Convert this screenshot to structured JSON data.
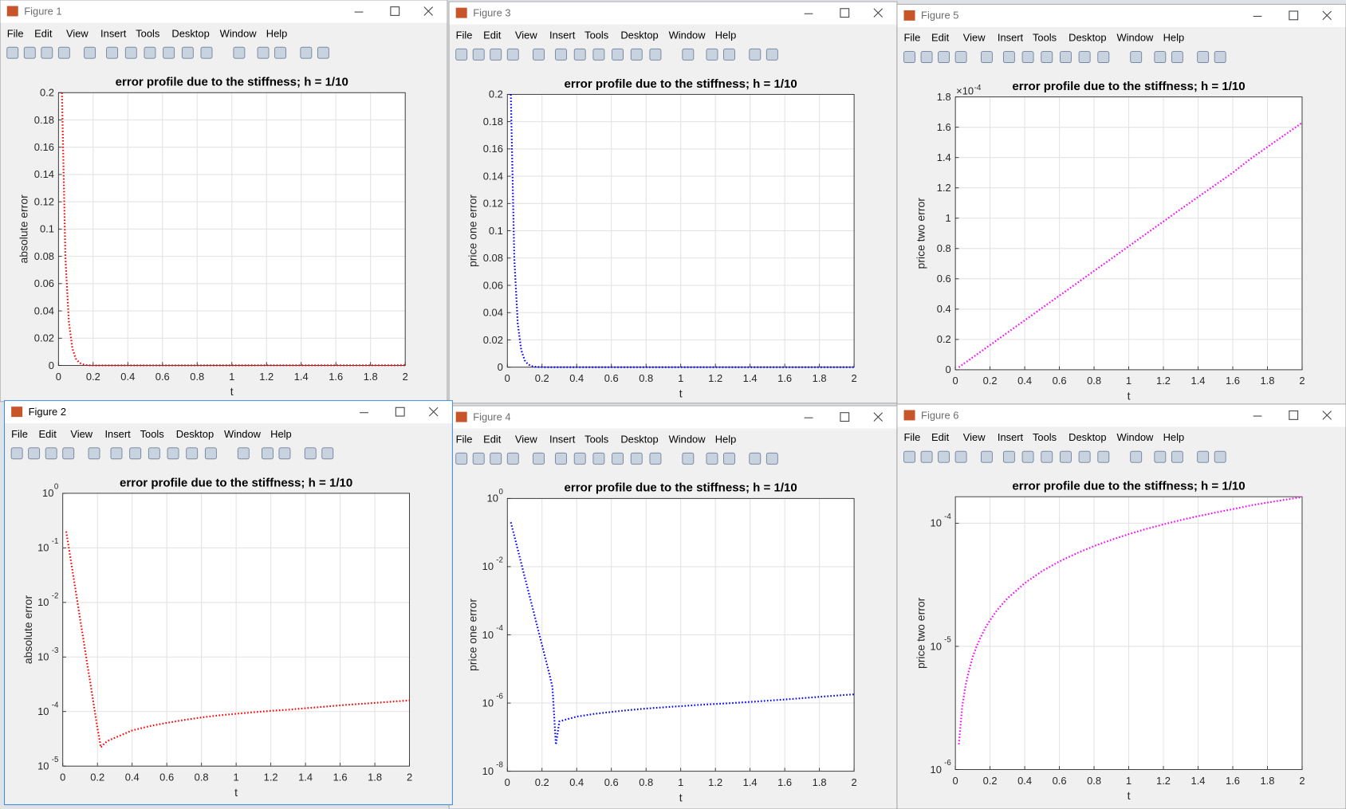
{
  "menu": [
    "File",
    "Edit",
    "View",
    "Insert",
    "Tools",
    "Desktop",
    "Window",
    "Help"
  ],
  "windows": [
    {
      "title": "Figure 1"
    },
    {
      "title": "Figure 2"
    },
    {
      "title": "Figure 3"
    },
    {
      "title": "Figure 4"
    },
    {
      "title": "Figure 5"
    },
    {
      "title": "Figure 6"
    }
  ],
  "chart_data": [
    {
      "type": "line",
      "title": "error profile due to the stiffness; h = 1/10",
      "xlabel": "t",
      "ylabel": "absolute error",
      "color": "#ff0000",
      "grid": true,
      "yscale": "linear",
      "x": [
        0.02,
        0.04,
        0.06,
        0.08,
        0.1,
        0.12,
        0.14,
        0.16,
        0.18,
        0.2,
        0.22,
        0.24,
        0.26,
        0.28,
        0.3,
        0.4,
        0.5,
        0.6,
        0.7,
        0.8,
        0.9,
        1,
        1.1,
        1.2,
        1.3,
        1.4,
        1.5,
        1.6,
        1.7,
        1.8,
        1.9,
        2
      ],
      "values": [
        0.2,
        0.079,
        0.032,
        0.0126,
        0.005,
        0.002,
        0.00079,
        0.00032,
        0.000126,
        5e-05,
        2.2e-05,
        2.6e-05,
        2.9e-05,
        3.1e-05,
        3.3e-05,
        4.5e-05,
        5.4e-05,
        6.2e-05,
        7e-05,
        7.8e-05,
        8.5e-05,
        9.1e-05,
        9.7e-05,
        0.000103,
        0.000108,
        0.000115,
        0.000122,
        0.00013,
        0.000137,
        0.000144,
        0.000152,
        0.00016
      ],
      "xlim": [
        0,
        2
      ],
      "xticks": [
        0,
        0.2,
        0.4,
        0.6,
        0.8,
        1,
        1.2,
        1.4,
        1.6,
        1.8,
        2
      ],
      "ylim": [
        0,
        0.2
      ],
      "yticks": [
        0,
        0.02,
        0.04,
        0.06,
        0.08,
        0.1,
        0.12,
        0.14,
        0.16,
        0.18,
        0.2
      ]
    },
    {
      "type": "line",
      "title": "error profile due to the stiffness; h = 1/10",
      "xlabel": "t",
      "ylabel": "absolute error",
      "color": "#ff0000",
      "grid": true,
      "yscale": "log",
      "x": [
        0.02,
        0.04,
        0.06,
        0.08,
        0.1,
        0.12,
        0.14,
        0.16,
        0.18,
        0.2,
        0.22,
        0.24,
        0.26,
        0.28,
        0.3,
        0.4,
        0.5,
        0.6,
        0.7,
        0.8,
        0.9,
        1,
        1.1,
        1.2,
        1.3,
        1.4,
        1.5,
        1.6,
        1.7,
        1.8,
        1.9,
        2
      ],
      "values": [
        0.2,
        0.079,
        0.032,
        0.0126,
        0.005,
        0.002,
        0.00079,
        0.00032,
        0.000126,
        5e-05,
        2.2e-05,
        2.6e-05,
        2.9e-05,
        3.1e-05,
        3.3e-05,
        4.5e-05,
        5.4e-05,
        6.2e-05,
        7e-05,
        7.8e-05,
        8.5e-05,
        9.1e-05,
        9.7e-05,
        0.000103,
        0.000108,
        0.000115,
        0.000122,
        0.00013,
        0.000137,
        0.000144,
        0.000152,
        0.00016
      ],
      "xlim": [
        0,
        2
      ],
      "xticks": [
        0,
        0.2,
        0.4,
        0.6,
        0.8,
        1,
        1.2,
        1.4,
        1.6,
        1.8,
        2
      ],
      "ylim": [
        1e-05,
        1
      ],
      "yticks": [
        {
          "value": 1e-05,
          "label": "10",
          "exponent": "-5"
        },
        {
          "value": 0.0001,
          "label": "10",
          "exponent": "-4"
        },
        {
          "value": 0.001,
          "label": "10",
          "exponent": "-3"
        },
        {
          "value": 0.01,
          "label": "10",
          "exponent": "-2"
        },
        {
          "value": 0.1,
          "label": "10",
          "exponent": "-1"
        },
        {
          "value": 1,
          "label": "10",
          "exponent": "0"
        }
      ]
    },
    {
      "type": "line",
      "title": "error profile due to the stiffness; h = 1/10",
      "xlabel": "t",
      "ylabel": "price one error",
      "color": "#0000ff",
      "grid": true,
      "yscale": "linear",
      "x": [
        0.02,
        0.04,
        0.06,
        0.08,
        0.1,
        0.12,
        0.14,
        0.16,
        0.18,
        0.2,
        0.22,
        0.24,
        0.26,
        0.28,
        0.3,
        0.4,
        0.5,
        0.6,
        0.7,
        0.8,
        0.9,
        1,
        1.1,
        1.2,
        1.3,
        1.4,
        1.5,
        1.6,
        1.7,
        1.8,
        1.9,
        2
      ],
      "values": [
        0.2,
        0.08,
        0.032,
        0.0126,
        0.005,
        0.002,
        0.0008,
        0.00032,
        0.000126,
        5e-05,
        2e-05,
        7.9e-06,
        3e-06,
        6e-08,
        2.9e-07,
        4e-07,
        4.8e-07,
        5.5e-07,
        6.2e-07,
        6.9e-07,
        7.5e-07,
        8.1e-07,
        8.8e-07,
        9.4e-07,
        1e-06,
        1.08e-06,
        1.17e-06,
        1.27e-06,
        1.39e-06,
        1.52e-06,
        1.66e-06,
        1.8e-06
      ],
      "xlim": [
        0,
        2
      ],
      "xticks": [
        0,
        0.2,
        0.4,
        0.6,
        0.8,
        1,
        1.2,
        1.4,
        1.6,
        1.8,
        2
      ],
      "ylim": [
        0,
        0.2
      ],
      "yticks": [
        0,
        0.02,
        0.04,
        0.06,
        0.08,
        0.1,
        0.12,
        0.14,
        0.16,
        0.18,
        0.2
      ]
    },
    {
      "type": "line",
      "title": "error profile due to the stiffness; h = 1/10",
      "xlabel": "t",
      "ylabel": "price one error",
      "color": "#0000ff",
      "grid": true,
      "yscale": "log",
      "x": [
        0.02,
        0.04,
        0.06,
        0.08,
        0.1,
        0.12,
        0.14,
        0.16,
        0.18,
        0.2,
        0.22,
        0.24,
        0.26,
        0.28,
        0.3,
        0.4,
        0.5,
        0.6,
        0.7,
        0.8,
        0.9,
        1,
        1.1,
        1.2,
        1.3,
        1.4,
        1.5,
        1.6,
        1.7,
        1.8,
        1.9,
        2
      ],
      "values": [
        0.2,
        0.08,
        0.032,
        0.0126,
        0.005,
        0.002,
        0.0008,
        0.00032,
        0.000126,
        5e-05,
        2e-05,
        7.9e-06,
        3e-06,
        6e-08,
        2.9e-07,
        4e-07,
        4.8e-07,
        5.5e-07,
        6.2e-07,
        6.9e-07,
        7.5e-07,
        8.1e-07,
        8.8e-07,
        9.4e-07,
        1e-06,
        1.08e-06,
        1.17e-06,
        1.27e-06,
        1.39e-06,
        1.52e-06,
        1.66e-06,
        1.8e-06
      ],
      "xlim": [
        0,
        2
      ],
      "xticks": [
        0,
        0.2,
        0.4,
        0.6,
        0.8,
        1,
        1.2,
        1.4,
        1.6,
        1.8,
        2
      ],
      "ylim": [
        1e-08,
        1
      ],
      "yticks": [
        {
          "value": 1e-08,
          "label": "10",
          "exponent": "-8"
        },
        {
          "value": 1e-06,
          "label": "10",
          "exponent": "-6"
        },
        {
          "value": 0.0001,
          "label": "10",
          "exponent": "-4"
        },
        {
          "value": 0.01,
          "label": "10",
          "exponent": "-2"
        },
        {
          "value": 1,
          "label": "10",
          "exponent": "0"
        }
      ]
    },
    {
      "type": "line",
      "title": "error profile due to the stiffness; h = 1/10",
      "xlabel": "t",
      "ylabel": "price two error",
      "color": "#ff00ff",
      "grid": true,
      "yscale": "linear",
      "x": [
        0.02,
        0.04,
        0.06,
        0.08,
        0.1,
        0.12,
        0.14,
        0.16,
        0.18,
        0.2,
        0.22,
        0.24,
        0.26,
        0.28,
        0.3,
        0.4,
        0.5,
        0.6,
        0.7,
        0.8,
        0.9,
        1,
        1.1,
        1.2,
        1.3,
        1.4,
        1.5,
        1.6,
        1.7,
        1.8,
        1.9,
        2
      ],
      "values": [
        1.6e-06,
        3.3e-06,
        4.9e-06,
        6.5e-06,
        8.2e-06,
        9.8e-06,
        1.14e-05,
        1.3e-05,
        1.47e-05,
        1.63e-05,
        1.79e-05,
        1.96e-05,
        2.12e-05,
        2.28e-05,
        2.45e-05,
        3.26e-05,
        4.08e-05,
        4.89e-05,
        5.7e-05,
        6.52e-05,
        7.33e-05,
        8.15e-05,
        8.97e-05,
        9.78e-05,
        0.000106,
        0.000114,
        0.000122,
        0.00013,
        0.000139,
        0.000147,
        0.000155,
        0.000163
      ],
      "xlim": [
        0,
        2
      ],
      "xticks": [
        0,
        0.2,
        0.4,
        0.6,
        0.8,
        1,
        1.2,
        1.4,
        1.6,
        1.8,
        2
      ],
      "ylim": [
        0,
        0.00018
      ],
      "y_multiplier": {
        "label": "×10",
        "exponent": "-4"
      },
      "yticks": [
        {
          "value": 0,
          "label": "0"
        },
        {
          "value": 2e-05,
          "label": "0.2"
        },
        {
          "value": 4e-05,
          "label": "0.4"
        },
        {
          "value": 6e-05,
          "label": "0.6"
        },
        {
          "value": 8e-05,
          "label": "0.8"
        },
        {
          "value": 0.0001,
          "label": "1"
        },
        {
          "value": 0.00012,
          "label": "1.2"
        },
        {
          "value": 0.00014,
          "label": "1.4"
        },
        {
          "value": 0.00016,
          "label": "1.6"
        },
        {
          "value": 0.00018,
          "label": "1.8"
        }
      ]
    },
    {
      "type": "line",
      "title": "error profile due to the stiffness; h = 1/10",
      "xlabel": "t",
      "ylabel": "price two error",
      "color": "#ff00ff",
      "grid": true,
      "yscale": "log",
      "x": [
        0.02,
        0.04,
        0.06,
        0.08,
        0.1,
        0.12,
        0.14,
        0.16,
        0.18,
        0.2,
        0.22,
        0.24,
        0.26,
        0.28,
        0.3,
        0.4,
        0.5,
        0.6,
        0.7,
        0.8,
        0.9,
        1,
        1.1,
        1.2,
        1.3,
        1.4,
        1.5,
        1.6,
        1.7,
        1.8,
        1.9,
        2
      ],
      "values": [
        1.6e-06,
        3.3e-06,
        4.9e-06,
        6.5e-06,
        8.2e-06,
        9.8e-06,
        1.14e-05,
        1.3e-05,
        1.47e-05,
        1.63e-05,
        1.79e-05,
        1.96e-05,
        2.12e-05,
        2.28e-05,
        2.45e-05,
        3.26e-05,
        4.08e-05,
        4.89e-05,
        5.7e-05,
        6.52e-05,
        7.33e-05,
        8.15e-05,
        8.97e-05,
        9.78e-05,
        0.000106,
        0.000114,
        0.000122,
        0.00013,
        0.000139,
        0.000147,
        0.000155,
        0.000163
      ],
      "xlim": [
        0,
        2
      ],
      "xticks": [
        0,
        0.2,
        0.4,
        0.6,
        0.8,
        1,
        1.2,
        1.4,
        1.6,
        1.8,
        2
      ],
      "ylim": [
        1e-06,
        0.000164
      ],
      "yticks": [
        {
          "value": 1e-06,
          "label": "10",
          "exponent": "-6"
        },
        {
          "value": 1e-05,
          "label": "10",
          "exponent": "-5"
        },
        {
          "value": 0.0001,
          "label": "10",
          "exponent": "-4"
        }
      ]
    }
  ]
}
